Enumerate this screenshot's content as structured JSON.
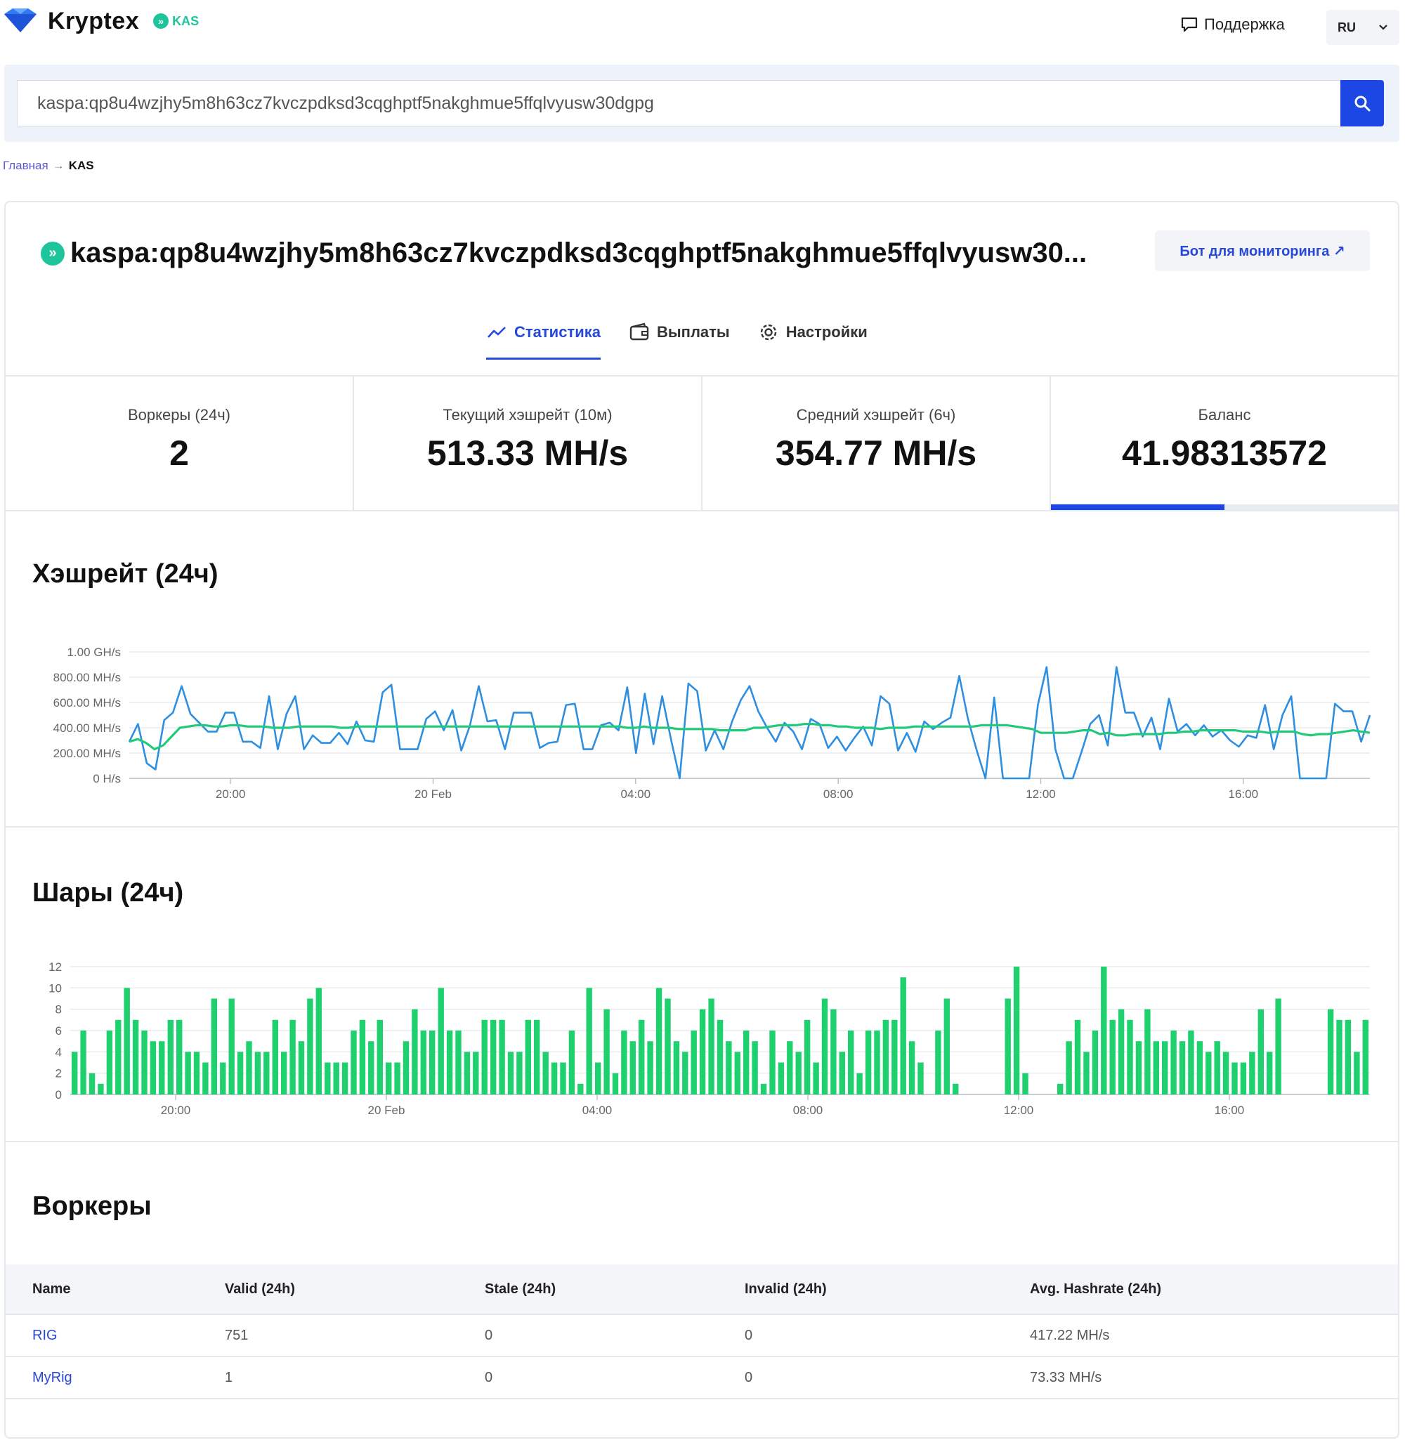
{
  "header": {
    "logo_text": "Kryptex",
    "coin_badge": "KAS",
    "support_label": "Поддержка",
    "lang": "RU"
  },
  "search": {
    "value": "kaspa:qp8u4wzjhy5m8h63cz7kvczpdksd3cqghptf5nakghmue5ffqlvyusw30dgpg"
  },
  "breadcrumb": {
    "home": "Главная",
    "arrow": "→",
    "current": "KAS"
  },
  "wallet": {
    "address_display": "kaspa:qp8u4wzjhy5m8h63cz7kvczpdksd3cqghptf5nakghmue5ffqlvyusw30...",
    "bot_button": "Бот для мониторинга ↗"
  },
  "tabs": [
    {
      "label": "Статистика",
      "icon": "chart-line-icon",
      "active": true
    },
    {
      "label": "Выплаты",
      "icon": "wallet-icon",
      "active": false
    },
    {
      "label": "Настройки",
      "icon": "gear-icon",
      "active": false
    }
  ],
  "stats": [
    {
      "label": "Воркеры (24ч)",
      "value": "2"
    },
    {
      "label": "Текущий хэшрейт (10м)",
      "value": "513.33 MH/s"
    },
    {
      "label": "Средний хэшрейт (6ч)",
      "value": "354.77 MH/s"
    },
    {
      "label": "Баланс",
      "value": "41.98313572",
      "progress": 0.5
    }
  ],
  "colors": {
    "accent": "#1d47e4",
    "hashrate_line": "#2e8fe0",
    "avg_line": "#22c97a",
    "shares_bar": "#1fd16e"
  },
  "sections": {
    "hashrate_title": "Хэшрейт (24ч)",
    "shares_title": "Шары (24ч)",
    "workers_title": "Воркеры"
  },
  "chart_data": [
    {
      "type": "line",
      "title": "Хэшрейт (24ч)",
      "x_ticks": [
        "20:00",
        "20 Feb",
        "04:00",
        "08:00",
        "12:00",
        "16:00"
      ],
      "x_tick_positions": [
        6,
        18,
        30,
        42,
        54,
        66
      ],
      "x_range": [
        0,
        73.5
      ],
      "y_ticks": [
        "0 H/s",
        "200.00 MH/s",
        "400.00 MH/s",
        "600.00 MH/s",
        "800.00 MH/s",
        "1.00 GH/s"
      ],
      "ylim": [
        0,
        1000
      ],
      "series": [
        {
          "values": [
            290,
            430,
            120,
            70,
            460,
            520,
            730,
            510,
            440,
            370,
            370,
            520,
            520,
            290,
            290,
            240,
            650,
            230,
            510,
            650,
            230,
            340,
            280,
            280,
            360,
            270,
            450,
            300,
            290,
            680,
            740,
            230,
            230,
            230,
            470,
            530,
            380,
            540,
            220,
            420,
            730,
            450,
            460,
            230,
            520,
            520,
            520,
            240,
            280,
            290,
            580,
            590,
            230,
            230,
            420,
            440,
            380,
            720,
            200,
            670,
            270,
            650,
            310,
            0,
            750,
            690,
            220,
            380,
            230,
            450,
            620,
            730,
            530,
            400,
            290,
            440,
            370,
            230,
            470,
            430,
            240,
            330,
            220,
            320,
            410,
            260,
            650,
            590,
            220,
            360,
            210,
            450,
            390,
            440,
            480,
            810,
            470,
            220,
            0,
            640,
            0,
            0,
            0,
            0,
            580,
            880,
            230,
            0,
            0,
            210,
            430,
            500,
            260,
            880,
            520,
            520,
            330,
            480,
            230,
            630,
            370,
            430,
            340,
            420,
            330,
            380,
            300,
            250,
            340,
            320,
            580,
            230,
            500,
            650,
            0,
            0,
            0,
            0,
            590,
            530,
            530,
            290,
            500
          ]
        },
        {
          "values": [
            290,
            310,
            280,
            230,
            260,
            330,
            400,
            410,
            420,
            420,
            410,
            410,
            420,
            420,
            410,
            410,
            410,
            400,
            400,
            400,
            410,
            410,
            410,
            410,
            410,
            400,
            400,
            410,
            410,
            410,
            410,
            410,
            410,
            410,
            410,
            410,
            410,
            410,
            410,
            410,
            410,
            410,
            410,
            410,
            410,
            410,
            410,
            410,
            410,
            410,
            410,
            410,
            410,
            410,
            410,
            410,
            410,
            410,
            410,
            400,
            400,
            410,
            400,
            400,
            400,
            390,
            390,
            390,
            390,
            390,
            380,
            380,
            380,
            380,
            400,
            400,
            410,
            420,
            420,
            420,
            430,
            430,
            420,
            420,
            410,
            410,
            400,
            400,
            400,
            390,
            400,
            400,
            400,
            410,
            410,
            410,
            410,
            410,
            410,
            410,
            410,
            420,
            420,
            420,
            420,
            410,
            400,
            390,
            360,
            360,
            360,
            360,
            370,
            380,
            380,
            350,
            360,
            340,
            340,
            350,
            350,
            350,
            350,
            360,
            360,
            370,
            370,
            380,
            380,
            380,
            380,
            380,
            370,
            370,
            370,
            360,
            370,
            370,
            370,
            350,
            340,
            350,
            350,
            360,
            370,
            380,
            370,
            360
          ]
        }
      ]
    },
    {
      "type": "bar",
      "title": "Шары (24ч)",
      "x_ticks": [
        "20:00",
        "20 Feb",
        "04:00",
        "08:00",
        "12:00",
        "16:00"
      ],
      "x_tick_positions": [
        6,
        18,
        30,
        42,
        54,
        66
      ],
      "x_range": [
        0,
        74
      ],
      "y_ticks": [
        "0",
        "2",
        "4",
        "6",
        "8",
        "10",
        "12"
      ],
      "ylim": [
        0,
        12
      ],
      "series": [
        {
          "values": [
            4,
            6,
            2,
            1,
            6,
            7,
            10,
            7,
            6,
            5,
            5,
            7,
            7,
            4,
            4,
            3,
            9,
            3,
            9,
            4,
            5,
            4,
            4,
            7,
            4,
            7,
            5,
            9,
            10,
            3,
            3,
            3,
            6,
            7,
            5,
            7,
            3,
            3,
            5,
            8,
            6,
            6,
            10,
            6,
            6,
            4,
            4,
            7,
            7,
            7,
            4,
            4,
            7,
            7,
            4,
            3,
            3,
            6,
            1,
            10,
            3,
            8,
            2,
            6,
            5,
            7,
            5,
            10,
            9,
            5,
            4,
            6,
            8,
            9,
            7,
            5,
            4,
            6,
            5,
            1,
            6,
            3,
            5,
            4,
            7,
            3,
            9,
            8,
            4,
            6,
            2,
            6,
            6,
            7,
            7,
            11,
            5,
            3,
            0,
            6,
            9,
            1,
            0,
            0,
            0,
            0,
            0,
            9,
            12,
            2,
            0,
            0,
            0,
            1,
            5,
            7,
            4,
            6,
            12,
            7,
            8,
            7,
            5,
            8,
            5,
            5,
            6,
            5,
            6,
            5,
            4,
            5,
            4,
            3,
            3,
            4,
            8,
            4,
            9,
            0,
            0,
            0,
            0,
            0,
            8,
            7,
            7,
            4,
            7
          ]
        }
      ]
    }
  ],
  "workers_table": {
    "columns": [
      "Name",
      "Valid (24h)",
      "Stale (24h)",
      "Invalid (24h)",
      "Avg. Hashrate (24h)"
    ],
    "rows": [
      [
        "RIG",
        "751",
        "0",
        "0",
        "417.22 MH/s"
      ],
      [
        "MyRig",
        "1",
        "0",
        "0",
        "73.33 MH/s"
      ]
    ]
  }
}
